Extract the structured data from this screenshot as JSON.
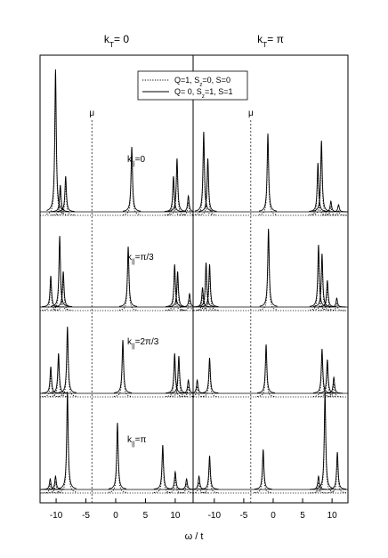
{
  "xlabel": "ω / t",
  "legend": [
    {
      "name": [
        "Q=1, S",
        "z",
        "=0, S=0"
      ],
      "style": "dotted",
      "color": "#000000"
    },
    {
      "name": [
        "Q= 0, S",
        "z",
        "=1, S=1"
      ],
      "style": "solid",
      "color": "#000000"
    }
  ],
  "chart_data": [
    {
      "type": "spectrum",
      "title": [
        "k",
        "T",
        "= 0"
      ],
      "xlim": [
        -12.7,
        13
      ],
      "xticks": [
        -10,
        -5,
        0,
        5,
        10
      ],
      "mu": -4,
      "mu_label": "μ",
      "rows": [
        {
          "label": [
            "k",
            "||",
            "=0"
          ],
          "x": [
            -10.1,
            -9.3,
            -8.4,
            2.7,
            9.7,
            10.3,
            12.2
          ],
          "series": [
            {
              "values": [
                1.45,
                0.28,
                0.35,
                0.68,
                0.36,
                0.55,
                0.15
              ]
            },
            {
              "values": [
                1.6,
                0.3,
                0.4,
                0.73,
                0.4,
                0.6,
                0.18
              ]
            }
          ]
        },
        {
          "label": [
            "k",
            "||",
            "=π/3"
          ],
          "x": [
            -10.9,
            -9.4,
            -8.8,
            2.1,
            9.9,
            10.4,
            12.4
          ],
          "series": [
            {
              "values": [
                0.3,
                0.75,
                0.36,
                0.63,
                0.44,
                0.36,
                0.12
              ]
            },
            {
              "values": [
                0.35,
                0.8,
                0.4,
                0.68,
                0.48,
                0.4,
                0.15
              ]
            }
          ]
        },
        {
          "label": [
            "k",
            "||",
            "=2π/3"
          ],
          "x": [
            -10.9,
            -9.6,
            -8.1,
            1.2,
            9.9,
            10.6,
            12.2
          ],
          "series": [
            {
              "values": [
                0.26,
                0.4,
                0.7,
                0.56,
                0.4,
                0.38,
                0.12
              ]
            },
            {
              "values": [
                0.3,
                0.45,
                0.75,
                0.6,
                0.45,
                0.42,
                0.15
              ]
            }
          ]
        },
        {
          "label": [
            "k",
            "||",
            "=π"
          ],
          "x": [
            -11.0,
            -10.1,
            -8.1,
            0.3,
            7.9,
            10.0,
            11.9
          ],
          "series": [
            {
              "values": [
                0.1,
                0.13,
                1.02,
                0.7,
                0.46,
                0.17,
                0.1
              ]
            },
            {
              "values": [
                0.12,
                0.15,
                1.1,
                0.75,
                0.5,
                0.2,
                0.12
              ]
            }
          ]
        }
      ]
    },
    {
      "type": "spectrum",
      "title": [
        "k",
        "T",
        "= π"
      ],
      "xlim": [
        -13.6,
        12.7
      ],
      "xticks": [
        -10,
        -5,
        0,
        5,
        10
      ],
      "mu": -3.8,
      "mu_label": "μ",
      "rows": [
        {
          "x": [
            -11.8,
            -11.1,
            -0.9,
            7.6,
            8.2,
            9.8,
            11.1
          ],
          "series": [
            {
              "values": [
                0.82,
                0.55,
                0.82,
                0.5,
                0.74,
                0.1,
                0.06
              ]
            },
            {
              "values": [
                0.9,
                0.6,
                0.88,
                0.55,
                0.8,
                0.12,
                0.08
              ]
            }
          ]
        },
        {
          "x": [
            -12.0,
            -11.4,
            -10.8,
            -0.8,
            7.7,
            8.3,
            9.2,
            10.8
          ],
          "series": [
            {
              "values": [
                0.18,
                0.45,
                0.44,
                0.82,
                0.64,
                0.55,
                0.26,
                0.08
              ]
            },
            {
              "values": [
                0.22,
                0.5,
                0.48,
                0.88,
                0.7,
                0.6,
                0.3,
                0.1
              ]
            }
          ]
        },
        {
          "x": [
            -12.9,
            -10.8,
            -1.2,
            8.3,
            9.2,
            10.3
          ],
          "series": [
            {
              "values": [
                0.12,
                0.36,
                0.5,
                0.46,
                0.34,
                0.15
              ]
            },
            {
              "values": [
                0.15,
                0.4,
                0.55,
                0.5,
                0.38,
                0.18
              ]
            }
          ]
        },
        {
          "x": [
            -12.6,
            -10.8,
            -1.7,
            7.7,
            8.8,
            10.9
          ],
          "series": [
            {
              "values": [
                0.12,
                0.34,
                0.4,
                0.12,
                1.02,
                0.38
              ]
            },
            {
              "values": [
                0.15,
                0.38,
                0.45,
                0.15,
                1.1,
                0.42
              ]
            }
          ]
        }
      ]
    }
  ]
}
